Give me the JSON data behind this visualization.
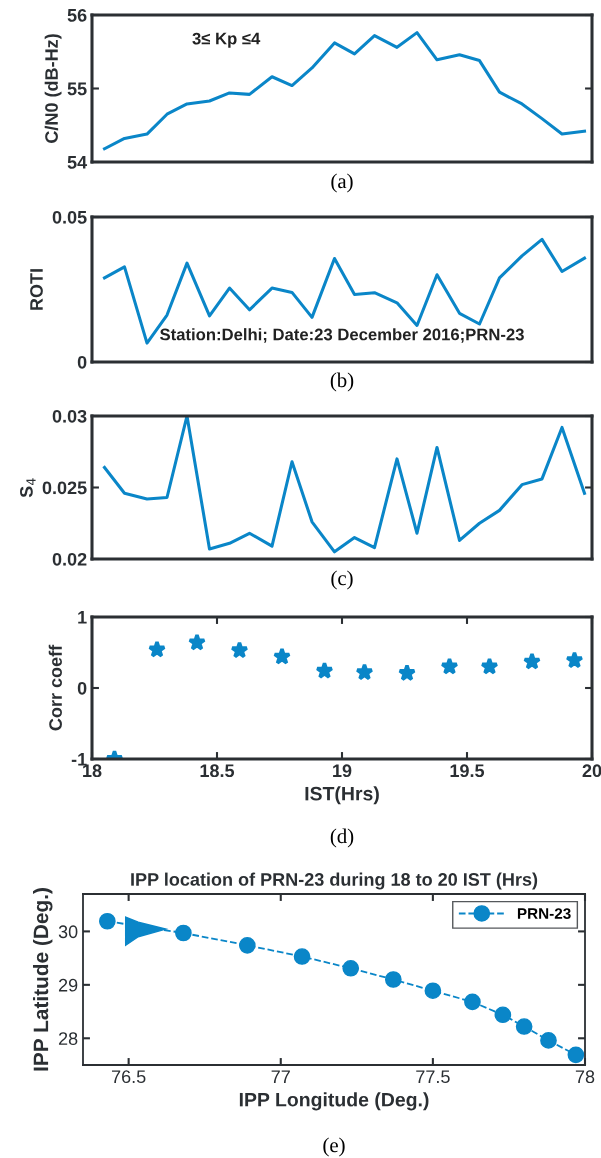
{
  "chart_data": [
    {
      "type": "line",
      "ylabel": "C/N0 (dB-Hz)",
      "annotations": [
        "3≤ Kp ≤4",
        "(a)"
      ],
      "x": [
        18.05,
        18.13,
        18.22,
        18.3,
        18.38,
        18.47,
        18.55,
        18.63,
        18.72,
        18.8,
        18.88,
        18.97,
        19.05,
        19.13,
        19.22,
        19.3,
        19.38,
        19.47,
        19.55,
        19.63,
        19.72,
        19.8,
        19.88,
        19.97
      ],
      "series": [
        {
          "color": "#0a86c8",
          "values": [
            54.18,
            54.32,
            54.38,
            54.65,
            54.79,
            54.83,
            54.94,
            54.92,
            55.16,
            55.04,
            55.28,
            55.62,
            55.47,
            55.72,
            55.56,
            55.76,
            55.39,
            55.46,
            55.38,
            54.95,
            54.79,
            54.59,
            54.38,
            54.42
          ]
        }
      ],
      "xlim": [
        18,
        20
      ],
      "ylim": [
        54,
        56
      ],
      "yticks": [
        54,
        55,
        56
      ],
      "tick_labels": "y"
    },
    {
      "type": "line",
      "ylabel": "ROTI",
      "annotations": [
        "Station:Delhi; Date:23 December 2016;PRN-23",
        "(b)"
      ],
      "x": [
        18.05,
        18.13,
        18.22,
        18.3,
        18.38,
        18.47,
        18.55,
        18.63,
        18.72,
        18.8,
        18.88,
        18.97,
        19.05,
        19.13,
        19.22,
        19.3,
        19.38,
        19.47,
        19.55,
        19.63,
        19.72,
        19.8,
        19.88,
        19.97
      ],
      "series": [
        {
          "color": "#0a86c8",
          "values": [
            0.029,
            0.0328,
            0.0065,
            0.0162,
            0.0341,
            0.0159,
            0.0255,
            0.018,
            0.0255,
            0.024,
            0.0154,
            0.0357,
            0.0233,
            0.0239,
            0.0204,
            0.0126,
            0.0301,
            0.0168,
            0.0131,
            0.029,
            0.0366,
            0.0423,
            0.0312,
            0.0358
          ]
        }
      ],
      "xlim": [
        18,
        20
      ],
      "ylim": [
        0,
        0.05
      ],
      "yticks": [
        0,
        0.05
      ],
      "tick_labels": "y"
    },
    {
      "type": "line",
      "ylabel": "S$_{4}$",
      "annotations": [
        "(c)"
      ],
      "x": [
        18.05,
        18.13,
        18.22,
        18.3,
        18.38,
        18.47,
        18.55,
        18.63,
        18.72,
        18.8,
        18.88,
        18.97,
        19.05,
        19.13,
        19.22,
        19.3,
        19.38,
        19.47,
        19.55,
        19.63,
        19.72,
        19.8,
        19.88,
        19.97
      ],
      "series": [
        {
          "color": "#0a86c8",
          "values": [
            0.0264,
            0.0246,
            0.0242,
            0.0243,
            0.03,
            0.0207,
            0.0211,
            0.0218,
            0.0209,
            0.0268,
            0.0226,
            0.0205,
            0.0215,
            0.0208,
            0.027,
            0.0218,
            0.0278,
            0.0213,
            0.0225,
            0.0234,
            0.0252,
            0.0256,
            0.0292,
            0.0246
          ]
        }
      ],
      "xlim": [
        18,
        20
      ],
      "ylim": [
        0.02,
        0.03
      ],
      "yticks": [
        0.02,
        0.025,
        0.03
      ],
      "tick_labels": "y"
    },
    {
      "type": "scatter",
      "xlabel": "IST(Hrs)",
      "ylabel": "Corr coeff",
      "annotations": [
        "(d)"
      ],
      "marker": "star",
      "x": [
        18.09,
        18.26,
        18.42,
        18.59,
        18.76,
        18.93,
        19.09,
        19.26,
        19.43,
        19.59,
        19.76,
        19.93
      ],
      "series": [
        {
          "color": "#0a86c8",
          "values": [
            -1,
            0.54,
            0.64,
            0.53,
            0.44,
            0.24,
            0.22,
            0.21,
            0.3,
            0.3,
            0.37,
            0.39
          ]
        }
      ],
      "xlim": [
        18,
        20
      ],
      "ylim": [
        -1,
        1
      ],
      "xticks": [
        18,
        18.5,
        19,
        19.5,
        20
      ],
      "yticks": [
        -1,
        0,
        1
      ]
    },
    {
      "type": "line",
      "title": "IPP location of PRN-23 during 18 to 20 IST (Hrs)",
      "xlabel": "IPP Longitude (Deg.)",
      "ylabel": "IPP Latitude (Deg.)",
      "annotations": [
        "(e)"
      ],
      "marker": "circle",
      "line_style": "dashed",
      "legend": "top right",
      "x": [
        76.43,
        76.68,
        76.89,
        77.07,
        77.23,
        77.37,
        77.5,
        77.63,
        77.73,
        77.8,
        77.88,
        77.97
      ],
      "series": [
        {
          "name": "PRN-23",
          "color": "#0a86c8",
          "values": [
            30.19,
            29.97,
            29.74,
            29.53,
            29.31,
            29.1,
            28.89,
            28.68,
            28.44,
            28.22,
            27.96,
            27.69
          ]
        }
      ],
      "xlim": [
        76.35,
        78.0
      ],
      "ylim": [
        27.5,
        30.7
      ],
      "xticks": [
        76.5,
        77,
        77.5,
        78
      ],
      "yticks": [
        28,
        29,
        30
      ]
    }
  ]
}
